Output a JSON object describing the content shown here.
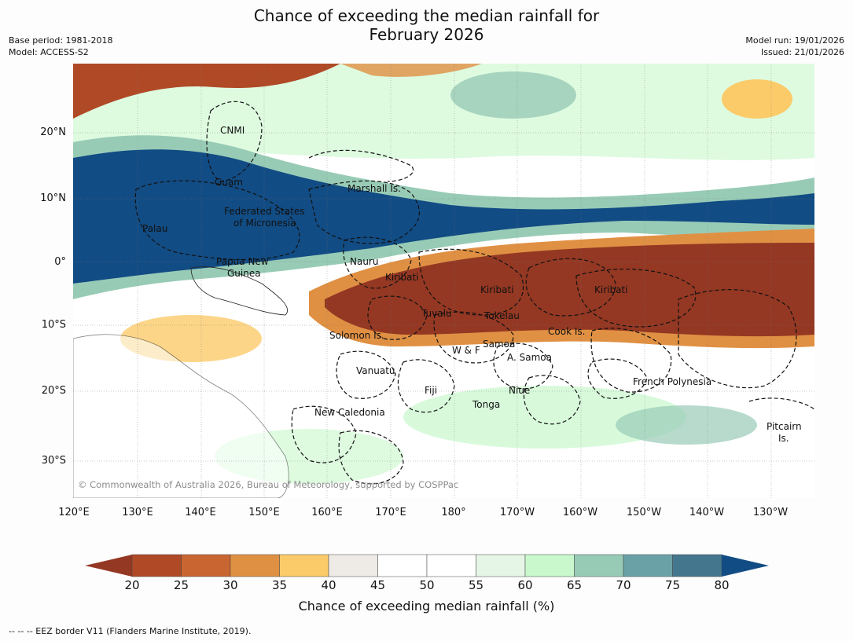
{
  "header": {
    "title_line1": "Chance of exceeding the median rainfall for",
    "title_line2": "February 2026",
    "base_period": "Base period: 1981-2018",
    "model": "Model: ACCESS-S2",
    "model_run": "Model run: 19/01/2026",
    "issued": "Issued: 21/01/2026"
  },
  "map": {
    "lat_ticks": [
      "20°N",
      "10°N",
      "0°",
      "10°S",
      "20°S",
      "30°S"
    ],
    "lon_ticks": [
      "120°E",
      "130°E",
      "140°E",
      "150°E",
      "160°E",
      "170°E",
      "180°",
      "170°W",
      "160°W",
      "150°W",
      "140°W",
      "130°W"
    ],
    "places": [
      "CNMI",
      "Guam",
      "Marshall Is.",
      "Federated States",
      "of Micronesia",
      "Palau",
      "Papua New",
      "Guinea",
      "Nauru",
      "Kiribati",
      "Kiribati",
      "Kiribati",
      "Tuvalu",
      "Tokelau",
      "Cook Is.",
      "Solomon Is.",
      "Samoa",
      "W & F",
      "A. Samoa",
      "Vanuatu",
      "Fiji",
      "Niue",
      "Tonga",
      "French Polynesia",
      "New Caledonia",
      "Pitcairn",
      "Is."
    ],
    "copyright": "© Commonwealth of Australia 2026, Bureau of Meteorology, supported by COSPPac"
  },
  "colorbar": {
    "ticks": [
      "20",
      "25",
      "30",
      "35",
      "40",
      "45",
      "50",
      "55",
      "60",
      "65",
      "70",
      "75",
      "80"
    ],
    "colors": [
      "#943823",
      "#b04a26",
      "#c96531",
      "#e09043",
      "#fbcb6a",
      "#eeebe6",
      "#ffffff",
      "#ffffff",
      "#e6f6e6",
      "#c8f8cc",
      "#98cbb6",
      "#6aa1a7",
      "#44778e",
      "#124c84"
    ],
    "label": "Chance of exceeding median rainfall (%)"
  },
  "footnote": "--  --  -- EEZ border V11 (Flanders Marine Institute, 2019)."
}
